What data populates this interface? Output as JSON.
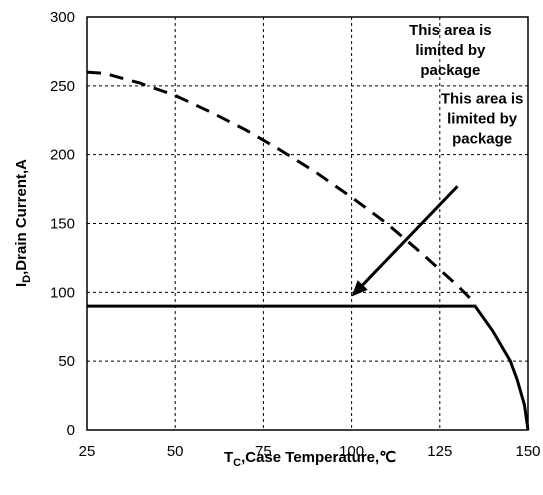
{
  "chart_data": {
    "type": "line",
    "xlabel_main": "T",
    "xlabel_sub": "C",
    "xlabel_rest": ",Case Temperature,℃",
    "ylabel_main": "I",
    "ylabel_sub": "D",
    "ylabel_rest": ",Drain Current,A",
    "xlim": [
      25,
      150
    ],
    "ylim": [
      0,
      300
    ],
    "x_ticks": [
      25,
      50,
      75,
      100,
      125,
      150
    ],
    "y_ticks": [
      0,
      50,
      100,
      150,
      200,
      250,
      300
    ],
    "grid": true,
    "series": [
      {
        "style": "dashed",
        "x": [
          25,
          30,
          40,
          50,
          60,
          70,
          80,
          90,
          100,
          110,
          120,
          130,
          135
        ],
        "y": [
          260,
          259,
          252,
          243,
          231,
          218,
          203,
          187,
          169,
          150,
          128,
          105,
          92
        ]
      },
      {
        "style": "solid",
        "x": [
          25,
          135,
          140,
          145,
          147,
          149,
          150
        ],
        "y": [
          90,
          90,
          72,
          50,
          36,
          18,
          0
        ]
      }
    ],
    "annotations": [
      {
        "lines": [
          "This area is",
          "limited by",
          "package"
        ],
        "at": [
          128,
          287
        ]
      },
      {
        "lines": [
          "This area is",
          "limited by",
          "package"
        ],
        "at": [
          137,
          237
        ]
      }
    ],
    "arrow": {
      "from": [
        130,
        177
      ],
      "to": [
        100,
        97
      ]
    }
  }
}
